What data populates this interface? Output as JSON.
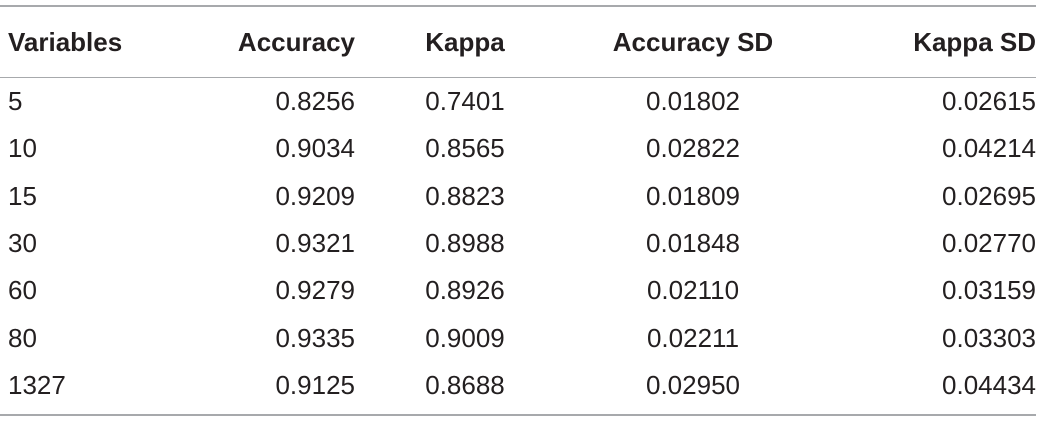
{
  "table": {
    "headers": [
      "Variables",
      "Accuracy",
      "Kappa",
      "Accuracy SD",
      "Kappa SD"
    ],
    "rows": [
      [
        "5",
        "0.8256",
        "0.7401",
        "0.01802",
        "0.02615"
      ],
      [
        "10",
        "0.9034",
        "0.8565",
        "0.02822",
        "0.04214"
      ],
      [
        "15",
        "0.9209",
        "0.8823",
        "0.01809",
        "0.02695"
      ],
      [
        "30",
        "0.9321",
        "0.8988",
        "0.01848",
        "0.02770"
      ],
      [
        "60",
        "0.9279",
        "0.8926",
        "0.02110",
        "0.03159"
      ],
      [
        "80",
        "0.9335",
        "0.9009",
        "0.02211",
        "0.03303"
      ],
      [
        "1327",
        "0.9125",
        "0.8688",
        "0.02950",
        "0.04434"
      ]
    ]
  },
  "colors": {
    "text": "#231f20",
    "rule": "#a7a9ac"
  }
}
